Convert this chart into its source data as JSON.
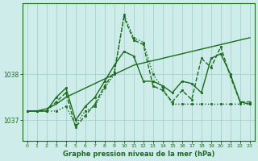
{
  "xlabel": "Graphe pression niveau de la mer (hPa)",
  "bg_color": "#ceecea",
  "grid_color": "#aed4d0",
  "line_color": "#1a6b1a",
  "text_color": "#1a6b1a",
  "ylim": [
    1036.55,
    1039.55
  ],
  "xlim": [
    -0.5,
    23.5
  ],
  "yticks": [
    1037,
    1038
  ],
  "xticks": [
    0,
    1,
    2,
    3,
    4,
    5,
    6,
    7,
    8,
    9,
    10,
    11,
    12,
    13,
    14,
    15,
    16,
    17,
    18,
    19,
    20,
    21,
    22,
    23
  ],
  "series": [
    [
      1037.2,
      1037.2,
      1037.2,
      1037.2,
      1037.3,
      1036.9,
      1037.2,
      1037.3,
      1037.7,
      1038.0,
      1039.3,
      1038.8,
      1038.7,
      1038.0,
      1037.7,
      1037.35,
      1037.35,
      1037.35,
      1037.35,
      1037.35,
      1037.35,
      1037.35,
      1037.35,
      1037.35
    ],
    [
      1037.2,
      1037.2,
      1037.25,
      1037.35,
      1037.5,
      1037.6,
      1037.7,
      1037.8,
      1037.9,
      1038.0,
      1038.1,
      1038.2,
      1038.25,
      1038.3,
      1038.35,
      1038.4,
      1038.45,
      1038.5,
      1038.55,
      1038.6,
      1038.65,
      1038.7,
      1038.75,
      1038.8
    ],
    [
      1037.2,
      1037.2,
      1037.2,
      1037.4,
      1037.6,
      1036.85,
      1037.1,
      1037.35,
      1037.75,
      1038.05,
      1039.25,
      1038.75,
      1038.65,
      1037.75,
      1037.65,
      1037.4,
      1037.65,
      1037.45,
      1038.35,
      1038.15,
      1038.6,
      1037.95,
      1037.4,
      1037.4
    ],
    [
      1037.2,
      1037.2,
      1037.2,
      1037.5,
      1037.7,
      1037.0,
      1037.3,
      1037.5,
      1037.85,
      1038.2,
      1038.5,
      1038.4,
      1037.85,
      1037.85,
      1037.75,
      1037.6,
      1037.85,
      1037.8,
      1037.6,
      1038.35,
      1038.45,
      1038.0,
      1037.4,
      1037.35
    ]
  ],
  "line_styles": [
    "dotted",
    "solid",
    "dashed",
    "solid"
  ],
  "linewidths": [
    1.0,
    1.0,
    1.0,
    1.0
  ]
}
